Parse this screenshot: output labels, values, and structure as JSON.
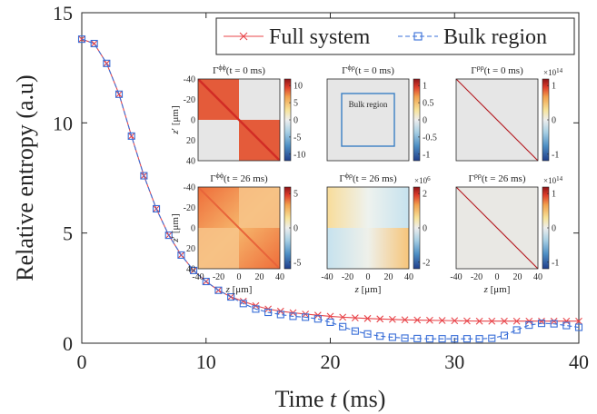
{
  "chart_data": {
    "type": "line",
    "xlabel": "Time t (ms)",
    "ylabel": "Relative entropy (a.u)",
    "xlim": [
      0,
      40
    ],
    "ylim": [
      0,
      15
    ],
    "xticks": [
      "0",
      "10",
      "20",
      "30",
      "40"
    ],
    "yticks": [
      "0",
      "5",
      "10",
      "15"
    ],
    "grid": false,
    "legend": {
      "placement": "top-right",
      "entries": [
        "Full system",
        "Bulk region"
      ]
    },
    "series": [
      {
        "name": "Full system",
        "color": "#e8454a",
        "marker": "x",
        "line": "solid",
        "x": [
          0,
          1,
          2,
          3,
          4,
          5,
          6,
          7,
          8,
          9,
          10,
          11,
          12,
          13,
          14,
          15,
          16,
          17,
          18,
          19,
          20,
          21,
          22,
          23,
          24,
          25,
          26,
          27,
          28,
          29,
          30,
          31,
          32,
          33,
          34,
          35,
          36,
          37,
          38,
          39,
          40
        ],
        "y": [
          13.8,
          13.6,
          12.7,
          11.3,
          9.4,
          7.6,
          6.1,
          4.9,
          4.0,
          3.3,
          2.8,
          2.4,
          2.1,
          1.9,
          1.7,
          1.55,
          1.45,
          1.38,
          1.32,
          1.27,
          1.22,
          1.18,
          1.15,
          1.12,
          1.1,
          1.08,
          1.06,
          1.05,
          1.04,
          1.03,
          1.02,
          1.01,
          1.0,
          1.0,
          1.0,
          1.0,
          1.0,
          1.0,
          1.0,
          1.0,
          1.0
        ]
      },
      {
        "name": "Bulk region",
        "color": "#3a6fd8",
        "marker": "square",
        "line": "dashed",
        "x": [
          0,
          1,
          2,
          3,
          4,
          5,
          6,
          7,
          8,
          9,
          10,
          11,
          12,
          13,
          14,
          15,
          16,
          17,
          18,
          19,
          20,
          21,
          22,
          23,
          24,
          25,
          26,
          27,
          28,
          29,
          30,
          31,
          32,
          33,
          34,
          35,
          36,
          37,
          38,
          39,
          40
        ],
        "y": [
          13.8,
          13.6,
          12.7,
          11.3,
          9.4,
          7.6,
          6.1,
          4.9,
          4.0,
          3.3,
          2.8,
          2.4,
          2.1,
          1.8,
          1.55,
          1.4,
          1.3,
          1.22,
          1.18,
          1.1,
          0.95,
          0.75,
          0.55,
          0.42,
          0.32,
          0.27,
          0.23,
          0.21,
          0.2,
          0.2,
          0.2,
          0.2,
          0.2,
          0.22,
          0.35,
          0.6,
          0.82,
          0.9,
          0.88,
          0.8,
          0.72
        ]
      }
    ]
  },
  "insets": [
    {
      "title": "Γ^{ϕϕ}(t = 0 ms)",
      "title_base": "Γ",
      "title_sup": "ϕϕ",
      "title_rest": "(t = 0 ms)",
      "kind": "phiphi0",
      "cbar_ticks": [
        "10",
        "5",
        "0",
        "-5",
        "-10"
      ],
      "cbar_exp": ""
    },
    {
      "title": "Γ^{ϕρ}(t = 0 ms)",
      "title_base": "Γ",
      "title_sup": "ϕρ",
      "title_rest": "(t = 0 ms)",
      "kind": "phirho0",
      "cbar_ticks": [
        "1",
        "0.5",
        "0",
        "-0.5",
        "-1"
      ],
      "cbar_exp": "",
      "annotation": "Bulk region"
    },
    {
      "title": "Γ^{ρρ}(t = 0 ms)",
      "title_base": "Γ",
      "title_sup": "ρρ",
      "title_rest": "(t = 0 ms)",
      "kind": "rhorho0",
      "cbar_ticks": [
        "1",
        "0",
        "-1"
      ],
      "cbar_exp": "×10",
      "cbar_exp_sup": "14"
    },
    {
      "title": "Γ^{ϕϕ}(t = 26 ms)",
      "title_base": "Γ",
      "title_sup": "ϕϕ",
      "title_rest": "(t = 26 ms)",
      "kind": "phiphi26",
      "cbar_ticks": [
        "5",
        "0",
        "-5"
      ],
      "cbar_exp": ""
    },
    {
      "title": "Γ^{ϕρ}(t = 26 ms)",
      "title_base": "Γ",
      "title_sup": "ϕρ",
      "title_rest": "(t = 26 ms)",
      "kind": "phirho26",
      "cbar_ticks": [
        "2",
        "0",
        "-2"
      ],
      "cbar_exp": "×10",
      "cbar_exp_sup": "6"
    },
    {
      "title": "Γ^{ρρ}(t = 26 ms)",
      "title_base": "Γ",
      "title_sup": "ρρ",
      "title_rest": "(t = 26 ms)",
      "kind": "rhorho26",
      "cbar_ticks": [
        "1",
        "0",
        "-1"
      ],
      "cbar_exp": "×10",
      "cbar_exp_sup": "14"
    }
  ],
  "inset_axes": {
    "ylabel_main": "z",
    "ylabel_prime": "′",
    "ylabel_unit": " [μm]",
    "xlabel_main": "z",
    "xlabel_unit": " [μm]",
    "y_ticks": [
      "-40",
      "-20",
      "0",
      "20",
      "40"
    ],
    "x_ticks": [
      "-40",
      "-20",
      "0",
      "20",
      "40"
    ]
  },
  "colors": {
    "background": "#ffffff",
    "axis": "#262626",
    "inset_bg": "#e6e6e6",
    "bulk_box": "#3a7fc4"
  }
}
